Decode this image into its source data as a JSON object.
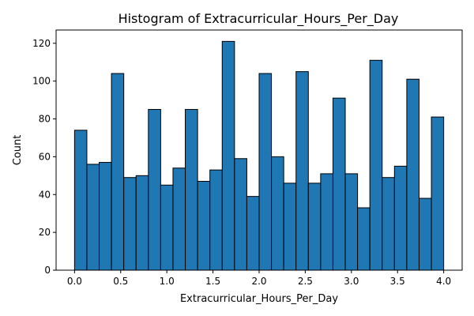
{
  "chart_data": {
    "type": "bar",
    "title": "Histogram of Extracurricular_Hours_Per_Day",
    "xlabel": "Extracurricular_Hours_Per_Day",
    "ylabel": "Count",
    "xlim": [
      -0.2,
      4.2
    ],
    "ylim": [
      0,
      127
    ],
    "bin_start": 0.0,
    "bin_end": 4.0,
    "bin_count": 30,
    "values": [
      74,
      56,
      57,
      104,
      49,
      50,
      85,
      45,
      54,
      85,
      47,
      53,
      121,
      59,
      39,
      104,
      60,
      46,
      105,
      46,
      51,
      91,
      51,
      33,
      111,
      49,
      55,
      101,
      38,
      81
    ],
    "x_ticks": [
      "0.0",
      "0.5",
      "1.0",
      "1.5",
      "2.0",
      "2.5",
      "3.0",
      "3.5",
      "4.0"
    ],
    "x_tick_values": [
      0.0,
      0.5,
      1.0,
      1.5,
      2.0,
      2.5,
      3.0,
      3.5,
      4.0
    ],
    "y_ticks": [
      "0",
      "20",
      "40",
      "60",
      "80",
      "100",
      "120"
    ],
    "y_tick_values": [
      0,
      20,
      40,
      60,
      80,
      100,
      120
    ],
    "bar_color": "#1f77b4",
    "edge_color": "#000000",
    "grid": false
  }
}
